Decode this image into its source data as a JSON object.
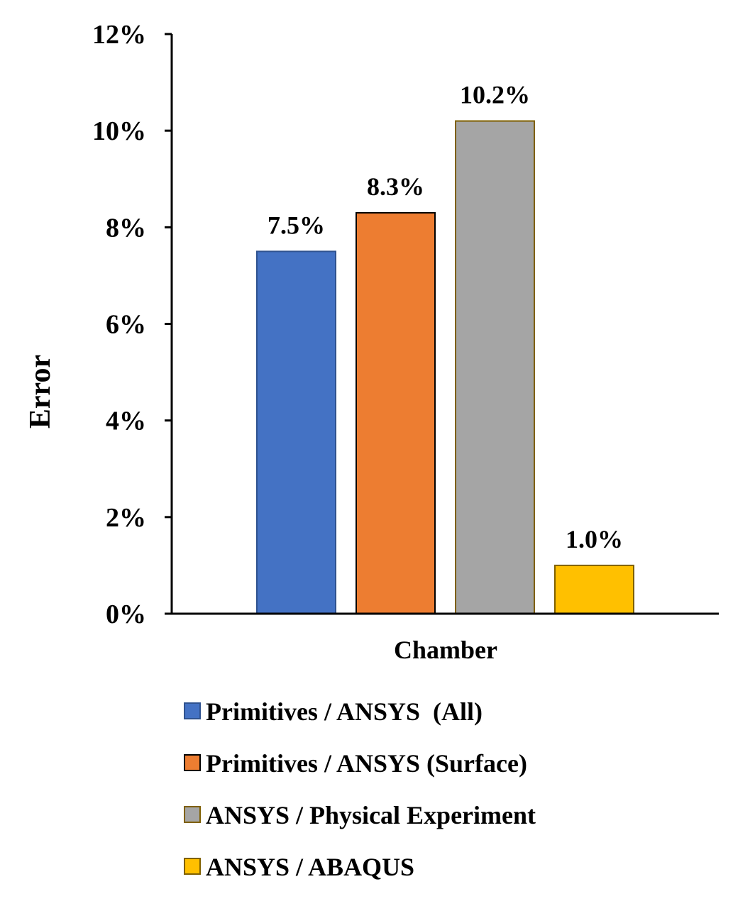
{
  "chart_data": {
    "type": "bar",
    "categories": [
      "Chamber"
    ],
    "xlabel": "Chamber",
    "ylabel": "Error",
    "ylim": [
      0,
      12
    ],
    "yticks": [
      "0%",
      "2%",
      "4%",
      "6%",
      "8%",
      "10%",
      "12%"
    ],
    "grid": false,
    "legend_position": "bottom",
    "series": [
      {
        "name": "Primitives / ANSYS  (All)",
        "values": [
          7.5
        ],
        "label": "7.5%",
        "color": "#4472c4",
        "edge": "#2f528f"
      },
      {
        "name": "Primitives / ANSYS (Surface)",
        "values": [
          8.3
        ],
        "label": "8.3%",
        "color": "#ed7d31",
        "edge": "#000000"
      },
      {
        "name": "ANSYS / Physical Experiment",
        "values": [
          10.2
        ],
        "label": "10.2%",
        "color": "#a5a5a5",
        "edge": "#7f6000"
      },
      {
        "name": "ANSYS / ABAQUS",
        "values": [
          1.0
        ],
        "label": "1.0%",
        "color": "#ffc000",
        "edge": "#7f6000"
      }
    ]
  }
}
